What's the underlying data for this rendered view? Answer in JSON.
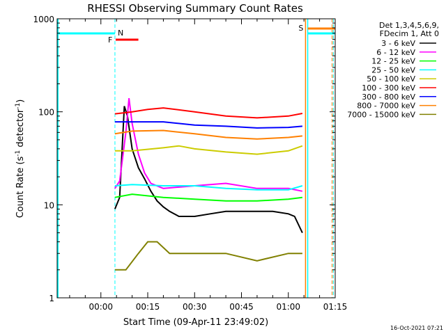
{
  "chart_data": {
    "type": "line",
    "title": "RHESSI Observing Summary Count Rates",
    "xlabel": "Start Time (09-Apr-11 23:49:02)",
    "ylabel": "Count Rate (s⁻¹ detector⁻¹)",
    "ylabel_main": "Count Rate (s",
    "ylabel_sup1": "-1",
    "ylabel_mid": " detector",
    "ylabel_sup2": "-1",
    "ylabel_end": ")",
    "y_scale": "log",
    "ylim": [
      1,
      1000
    ],
    "xlim_minutes": [
      -14,
      75
    ],
    "x_tick_labels": [
      "00:00",
      "00:15",
      "00:30",
      "00:45",
      "01:00",
      "01:15"
    ],
    "x_tick_values_minutes": [
      0,
      15,
      30,
      45,
      60,
      75
    ],
    "y_tick_labels": [
      "1",
      "10",
      "100",
      "1000"
    ],
    "y_tick_values": [
      1,
      10,
      100,
      1000
    ],
    "legend_header": [
      "Det 1,3,4,5,6,9,",
      "FDecim 1, Att 0"
    ],
    "legend_placement": "right",
    "timestamp": "16-Oct-2021 07:21",
    "flags": {
      "night_marker": "N",
      "flare_marker": "F",
      "saa_marker": "S"
    },
    "series": [
      {
        "name": "3 - 6 keV",
        "color": "#000000",
        "values": [
          [
            4.5,
            9
          ],
          [
            6,
            12
          ],
          [
            7.5,
            115
          ],
          [
            8.5,
            90
          ],
          [
            10,
            40
          ],
          [
            12,
            25
          ],
          [
            14,
            19
          ],
          [
            16,
            14
          ],
          [
            18,
            11
          ],
          [
            20,
            9.5
          ],
          [
            22,
            8.5
          ],
          [
            25,
            7.5
          ],
          [
            30,
            7.5
          ],
          [
            35,
            8
          ],
          [
            40,
            8.5
          ],
          [
            45,
            8.5
          ],
          [
            50,
            8.5
          ],
          [
            55,
            8.5
          ],
          [
            60,
            8
          ],
          [
            62,
            7.5
          ],
          [
            64.5,
            5
          ]
        ]
      },
      {
        "name": "6 - 12 keV",
        "color": "#ff00ff",
        "values": [
          [
            4.5,
            15
          ],
          [
            6,
            18
          ],
          [
            8,
            60
          ],
          [
            9,
            140
          ],
          [
            10,
            75
          ],
          [
            12,
            35
          ],
          [
            14,
            22
          ],
          [
            16,
            17
          ],
          [
            20,
            15
          ],
          [
            30,
            16
          ],
          [
            40,
            17
          ],
          [
            50,
            15
          ],
          [
            60,
            15
          ],
          [
            64.5,
            14
          ]
        ]
      },
      {
        "name": "12 - 25 keV",
        "color": "#00ff00",
        "values": [
          [
            4.5,
            12
          ],
          [
            10,
            13
          ],
          [
            20,
            12
          ],
          [
            30,
            11.5
          ],
          [
            40,
            11
          ],
          [
            50,
            11
          ],
          [
            60,
            11.5
          ],
          [
            64.5,
            12
          ]
        ]
      },
      {
        "name": "25 - 50 keV",
        "color": "#00ffff",
        "values": [
          [
            4.5,
            16
          ],
          [
            10,
            16.5
          ],
          [
            20,
            16
          ],
          [
            30,
            16
          ],
          [
            40,
            15
          ],
          [
            50,
            14.5
          ],
          [
            60,
            14.5
          ],
          [
            64.5,
            16
          ]
        ]
      },
      {
        "name": "50 - 100 keV",
        "color": "#cccc00",
        "values": [
          [
            4.5,
            38
          ],
          [
            10,
            38
          ],
          [
            20,
            41
          ],
          [
            25,
            43
          ],
          [
            30,
            40
          ],
          [
            40,
            37
          ],
          [
            50,
            35
          ],
          [
            60,
            38
          ],
          [
            64.5,
            43
          ]
        ]
      },
      {
        "name": "100 - 300 keV",
        "color": "#ff0000",
        "values": [
          [
            4.5,
            95
          ],
          [
            10,
            100
          ],
          [
            15,
            106
          ],
          [
            20,
            110
          ],
          [
            30,
            100
          ],
          [
            40,
            90
          ],
          [
            50,
            86
          ],
          [
            60,
            90
          ],
          [
            64.5,
            96
          ]
        ]
      },
      {
        "name": "300 - 800 keV",
        "color": "#0000ff",
        "values": [
          [
            4.5,
            78
          ],
          [
            10,
            78
          ],
          [
            20,
            78
          ],
          [
            30,
            72
          ],
          [
            40,
            70
          ],
          [
            50,
            67
          ],
          [
            60,
            68
          ],
          [
            64.5,
            70
          ]
        ]
      },
      {
        "name": "800 - 7000 keV",
        "color": "#ff8000",
        "values": [
          [
            4.5,
            58
          ],
          [
            10,
            62
          ],
          [
            20,
            63
          ],
          [
            30,
            58
          ],
          [
            40,
            53
          ],
          [
            50,
            51
          ],
          [
            60,
            53
          ],
          [
            64.5,
            55
          ]
        ]
      },
      {
        "name": "7000 - 15000 keV",
        "color": "#808000",
        "values": [
          [
            4.5,
            2
          ],
          [
            8,
            2
          ],
          [
            12,
            3
          ],
          [
            15,
            4
          ],
          [
            18,
            4
          ],
          [
            22,
            3
          ],
          [
            30,
            3
          ],
          [
            40,
            3
          ],
          [
            50,
            2.5
          ],
          [
            60,
            3
          ],
          [
            64.5,
            3
          ]
        ]
      }
    ]
  }
}
